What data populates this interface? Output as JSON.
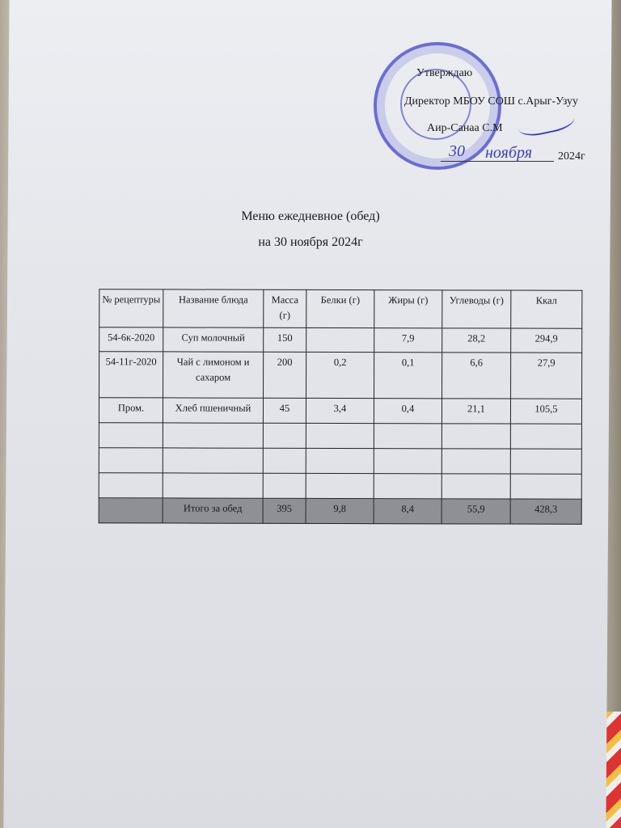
{
  "approval": {
    "approve": "Утверждаю",
    "position": "Директор МБОУ СОШ с.Арыг-Узуу",
    "name": "Аир-Санаа С.М",
    "date_day": "30",
    "date_month": "ноября",
    "date_year": "2024г"
  },
  "title": "Меню ежедневное (обед)",
  "subtitle": "на 30 ноября 2024г",
  "table": {
    "headers": [
      "№ рецептуры",
      "Название блюда",
      "Масса (г)",
      "Белки (г)",
      "Жиры (г)",
      "Углеводы (г)",
      "Ккал"
    ],
    "rows": [
      [
        "54-6к-2020",
        "Суп молочный",
        "150",
        "",
        "7,9",
        "28,2",
        "294,9"
      ],
      [
        "54-11г-2020",
        "Чай с лимоном и сахаром",
        "200",
        "0,2",
        "0,1",
        "6,6",
        "27,9"
      ],
      [
        "Пром.",
        "Хлеб пшеничный",
        "45",
        "3,4",
        "0,4",
        "21,1",
        "105,5"
      ],
      [
        "",
        "",
        "",
        "",
        "",
        "",
        ""
      ],
      [
        "",
        "",
        "",
        "",
        "",
        "",
        ""
      ],
      [
        "",
        "",
        "",
        "",
        "",
        "",
        ""
      ]
    ],
    "total": [
      "",
      "Итого за обед",
      "395",
      "9,8",
      "8,4",
      "55,9",
      "428,3"
    ]
  },
  "colors": {
    "stamp": "#4c4ed0",
    "total_row": "#8f9096"
  }
}
